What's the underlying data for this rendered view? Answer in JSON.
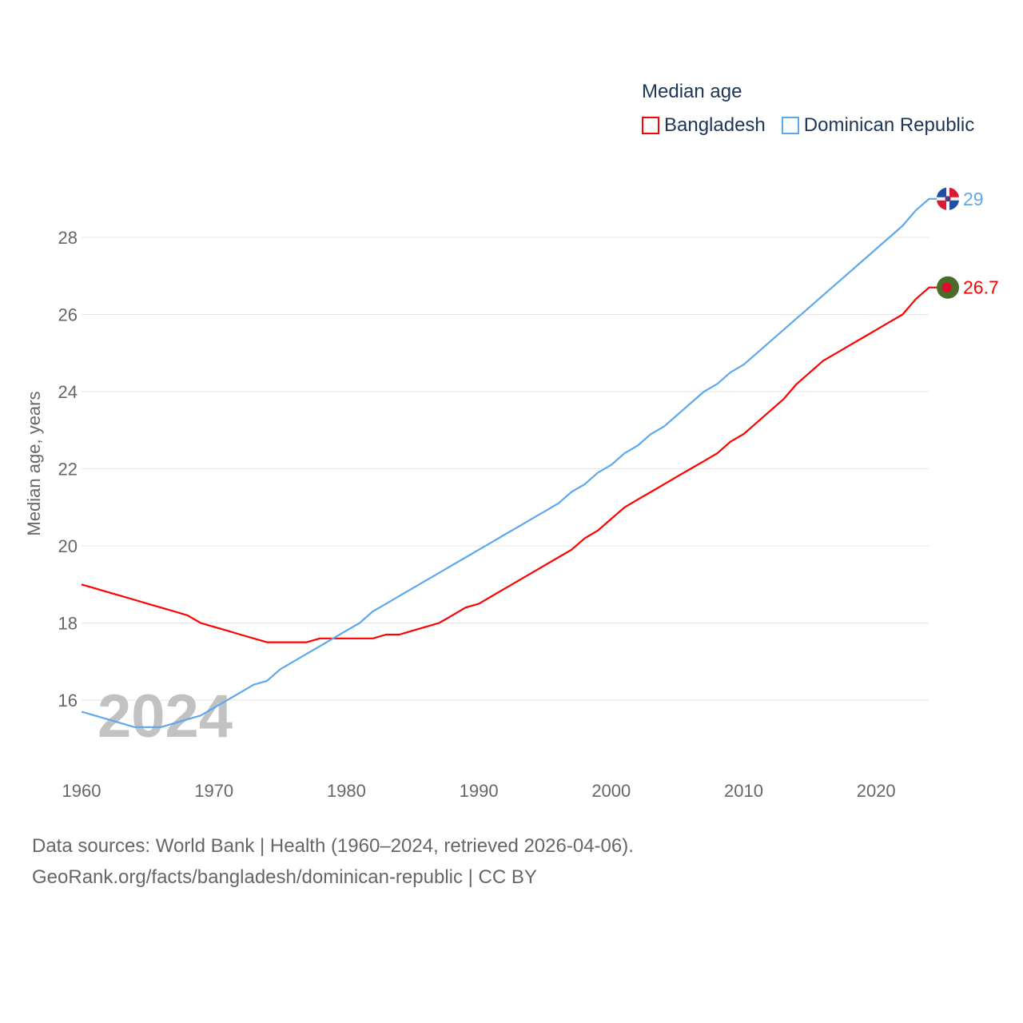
{
  "chart_data": {
    "type": "line",
    "title": "Median age",
    "xlabel": "",
    "ylabel": "Median age, years",
    "xlim": [
      1960,
      2024
    ],
    "ylim": [
      14.5,
      29.6
    ],
    "x_ticks": [
      1960,
      1970,
      1980,
      1990,
      2000,
      2010,
      2020
    ],
    "y_ticks": [
      16,
      18,
      20,
      22,
      24,
      26,
      28
    ],
    "grid": true,
    "legend_placement": "top-right",
    "year_watermark": "2024",
    "x": [
      1960,
      1961,
      1962,
      1963,
      1964,
      1965,
      1966,
      1967,
      1968,
      1969,
      1970,
      1971,
      1972,
      1973,
      1974,
      1975,
      1976,
      1977,
      1978,
      1979,
      1980,
      1981,
      1982,
      1983,
      1984,
      1985,
      1986,
      1987,
      1988,
      1989,
      1990,
      1991,
      1992,
      1993,
      1994,
      1995,
      1996,
      1997,
      1998,
      1999,
      2000,
      2001,
      2002,
      2003,
      2004,
      2005,
      2006,
      2007,
      2008,
      2009,
      2010,
      2011,
      2012,
      2013,
      2014,
      2015,
      2016,
      2017,
      2018,
      2019,
      2020,
      2021,
      2022,
      2023,
      2024
    ],
    "series": [
      {
        "name": "Bangladesh",
        "color": "#ff0000",
        "end_label": "26.7",
        "values": [
          19.0,
          18.9,
          18.8,
          18.7,
          18.6,
          18.5,
          18.4,
          18.3,
          18.2,
          18.0,
          17.9,
          17.8,
          17.7,
          17.6,
          17.5,
          17.5,
          17.5,
          17.5,
          17.6,
          17.6,
          17.6,
          17.6,
          17.6,
          17.7,
          17.7,
          17.8,
          17.9,
          18.0,
          18.2,
          18.4,
          18.5,
          18.7,
          18.9,
          19.1,
          19.3,
          19.5,
          19.7,
          19.9,
          20.2,
          20.4,
          20.7,
          21.0,
          21.2,
          21.4,
          21.6,
          21.8,
          22.0,
          22.2,
          22.4,
          22.7,
          22.9,
          23.2,
          23.5,
          23.8,
          24.2,
          24.5,
          24.8,
          25.0,
          25.2,
          25.4,
          25.6,
          25.8,
          26.0,
          26.4,
          26.7
        ]
      },
      {
        "name": "Dominican Republic",
        "color": "#5ea8ec",
        "end_label": "29",
        "values": [
          15.7,
          15.6,
          15.5,
          15.4,
          15.3,
          15.3,
          15.3,
          15.4,
          15.5,
          15.6,
          15.8,
          16.0,
          16.2,
          16.4,
          16.5,
          16.8,
          17.0,
          17.2,
          17.4,
          17.6,
          17.8,
          18.0,
          18.3,
          18.5,
          18.7,
          18.9,
          19.1,
          19.3,
          19.5,
          19.7,
          19.9,
          20.1,
          20.3,
          20.5,
          20.7,
          20.9,
          21.1,
          21.4,
          21.6,
          21.9,
          22.1,
          22.4,
          22.6,
          22.9,
          23.1,
          23.4,
          23.7,
          24.0,
          24.2,
          24.5,
          24.7,
          25.0,
          25.3,
          25.6,
          25.9,
          26.2,
          26.5,
          26.8,
          27.1,
          27.4,
          27.7,
          28.0,
          28.3,
          28.7,
          29.0
        ]
      }
    ]
  },
  "footer": {
    "line1": "Data sources: World Bank | Health (1960–2024, retrieved 2026-04-06).",
    "line2": "GeoRank.org/facts/bangladesh/dominican-republic | CC BY"
  }
}
